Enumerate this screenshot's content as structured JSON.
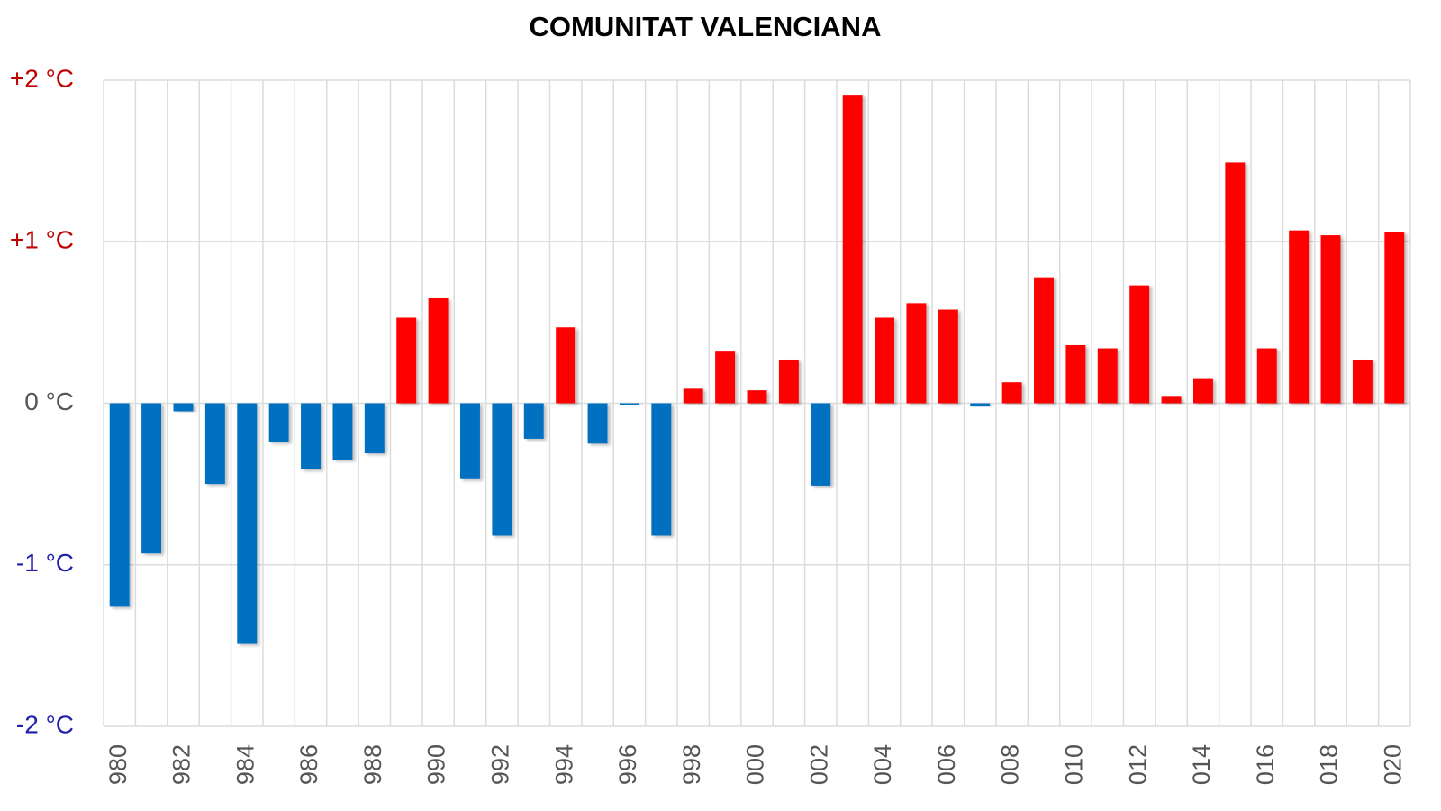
{
  "chart_data": {
    "type": "bar",
    "title": "COMUNITAT VALENCIANA",
    "categories": [
      "980",
      null,
      "982",
      null,
      "984",
      null,
      "986",
      null,
      "988",
      null,
      "990",
      null,
      "992",
      null,
      "994",
      null,
      "996",
      null,
      "998",
      null,
      "000",
      null,
      "002",
      null,
      "004",
      null,
      "006",
      null,
      "008",
      null,
      "010",
      null,
      "012",
      null,
      "014",
      null,
      "016",
      null,
      "018",
      null,
      "020"
    ],
    "values": [
      -1.26,
      -0.93,
      -0.05,
      -0.5,
      -1.49,
      -0.24,
      -0.41,
      -0.35,
      -0.31,
      0.53,
      0.65,
      -0.47,
      -0.82,
      -0.22,
      0.47,
      -0.25,
      -0.01,
      -0.82,
      0.09,
      0.32,
      0.08,
      0.27,
      -0.51,
      1.91,
      0.53,
      0.62,
      0.58,
      -0.02,
      0.13,
      0.78,
      0.36,
      0.34,
      0.73,
      0.04,
      0.15,
      1.49,
      0.34,
      1.07,
      1.04,
      0.27,
      1.06
    ],
    "positive_color": "#ff0000",
    "negative_color": "#0070c0",
    "ylim": [
      -2,
      2
    ],
    "yticks": [
      {
        "value": -2,
        "label": "-2 °C"
      },
      {
        "value": -1,
        "label": "-1 °C"
      },
      {
        "value": 0,
        "label": "0 °C"
      },
      {
        "value": 1,
        "label": "+1 °C"
      },
      {
        "value": 2,
        "label": "+2 °C"
      }
    ],
    "grid": true
  }
}
